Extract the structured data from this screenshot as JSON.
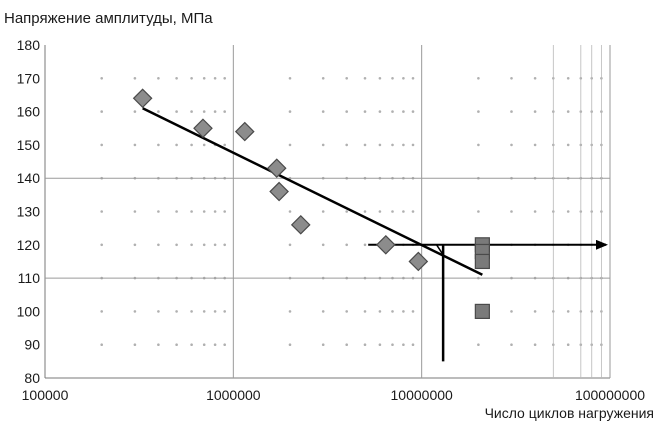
{
  "chart_data": {
    "type": "scatter",
    "title": "Напряжение амплитуды, МПа",
    "xlabel": "Число циклов нагружения",
    "ylabel": "Напряжение амплитуды, МПа",
    "x_scale": "log",
    "xlim": [
      100000,
      100000000
    ],
    "ylim": [
      80,
      180
    ],
    "x_tick_labels": [
      "100000",
      "1000000",
      "10000000",
      "100000000"
    ],
    "y_tick_labels": [
      "80",
      "90",
      "100",
      "110",
      "120",
      "130",
      "140",
      "150",
      "160",
      "170",
      "180"
    ],
    "grid": true,
    "colors": {
      "marker_fill": "#8c8c8c",
      "marker_stroke": "#4a4a4a",
      "line": "#000000",
      "grid": "#9a9a9a",
      "dots": "#b0b0b0"
    },
    "series": [
      {
        "marker": "diamond",
        "points": [
          {
            "x": 330000,
            "y": 164
          },
          {
            "x": 690000,
            "y": 155
          },
          {
            "x": 1150000,
            "y": 154
          },
          {
            "x": 1700000,
            "y": 143
          },
          {
            "x": 1750000,
            "y": 136
          },
          {
            "x": 2280000,
            "y": 126
          },
          {
            "x": 6450000,
            "y": 120
          },
          {
            "x": 9600000,
            "y": 115
          }
        ]
      },
      {
        "marker": "square",
        "points": [
          {
            "x": 21000000,
            "y": 120
          },
          {
            "x": 21000000,
            "y": 118
          },
          {
            "x": 21000000,
            "y": 115
          },
          {
            "x": 21000000,
            "y": 100
          }
        ]
      }
    ],
    "annotations": {
      "fit_line": {
        "from": [
          330000,
          161
        ],
        "to": [
          21000000,
          111
        ]
      },
      "endurance_arrow": {
        "from": [
          5200000,
          120
        ],
        "to": [
          100000000,
          120
        ]
      },
      "vertical_line": {
        "x": 13000000,
        "y_from": 120,
        "y_to": 85
      },
      "connector": {
        "from": [
          12000000,
          120
        ],
        "to": [
          13000000,
          117
        ]
      }
    }
  }
}
